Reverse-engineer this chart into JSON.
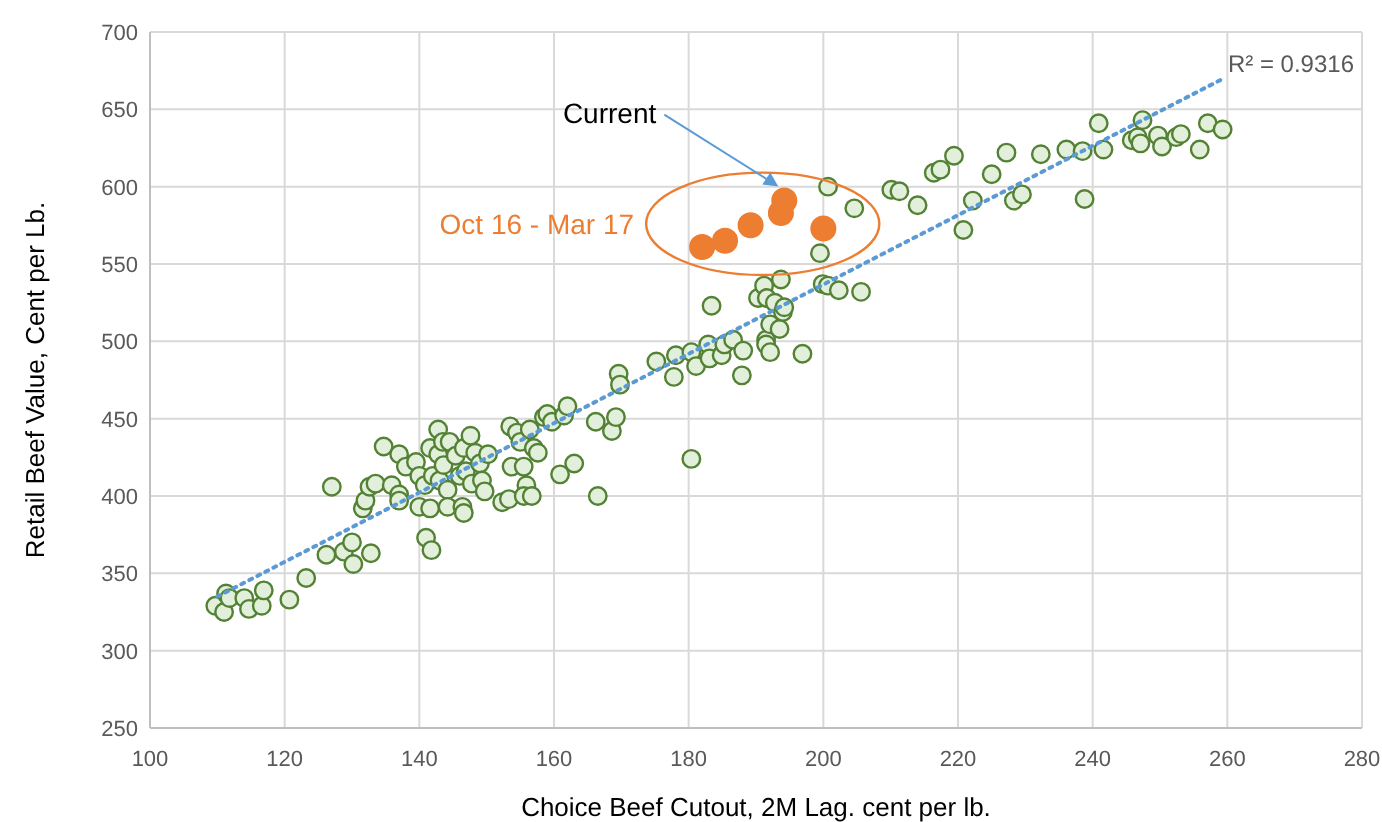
{
  "chart_data": {
    "type": "scatter",
    "xlabel": "Choice Beef Cutout, 2M Lag.  cent per lb.",
    "ylabel": "Retail Beef Value, Cent per Lb.",
    "xlim": [
      100,
      280
    ],
    "xticks": [
      100,
      120,
      140,
      160,
      180,
      200,
      220,
      240,
      260,
      280
    ],
    "ylim": [
      250,
      700
    ],
    "yticks": [
      250,
      300,
      350,
      400,
      450,
      500,
      550,
      600,
      650,
      700
    ],
    "grid": true,
    "annotations": [
      "Current",
      "R² = 0.9316"
    ],
    "series": [
      {
        "color": "#548235",
        "marker": "circle",
        "x": [
          109.7,
          111,
          111.3,
          111.8,
          114,
          114.7,
          116.6,
          116.9,
          120.7,
          123.2,
          126.2,
          127,
          128.8,
          130,
          130.2,
          131.6,
          132,
          132.8,
          132.6,
          133.5,
          134.7,
          135.9,
          137,
          137,
          137,
          138,
          139.5,
          140,
          140,
          140.8,
          141,
          141.6,
          141.6,
          141.8,
          142,
          142.8,
          142.8,
          143,
          143.5,
          143.6,
          144.2,
          144.5,
          144.2,
          145.4,
          146,
          146.4,
          146.6,
          146.9,
          146.6,
          147.6,
          147.8,
          148.3,
          149,
          149.3,
          149.7,
          150.2,
          152.3,
          153.3,
          153.5,
          153.7,
          154.5,
          155,
          155.5,
          155.9,
          155.5,
          156.4,
          156.7,
          157,
          157.6,
          158.5,
          159,
          159.7,
          160.9,
          161.5,
          162,
          163,
          166.2,
          166.5,
          168.6,
          169.2,
          169.6,
          169.8,
          175.2,
          177.8,
          178.1,
          180.4,
          180.4,
          181.1,
          182.9,
          183.1,
          183.4,
          184.9,
          185.3,
          186.6,
          187.9,
          188.1,
          190.3,
          191.2,
          191.6,
          191.5,
          191.5,
          192.1,
          192.1,
          192.8,
          193.5,
          193.7,
          194,
          194.2,
          196.9,
          199.5,
          199.9,
          200.7,
          200.7,
          202.3,
          204.6,
          205.6,
          210.1,
          211.3,
          214,
          216.4,
          217.4,
          219.4,
          220.8,
          222.2,
          225,
          227.2,
          228.3,
          229.5,
          232.3,
          236.1,
          238.5,
          238.8,
          240.9,
          241.6,
          245.8,
          246.7,
          247.1,
          247.4,
          249.7,
          250.3,
          252.4,
          253.1,
          255.9,
          257.1,
          259.3
        ],
        "values": [
          329,
          325,
          337,
          334,
          334,
          327,
          329,
          339,
          333,
          347,
          362,
          406,
          364,
          370,
          356,
          392,
          397,
          363,
          406,
          408,
          432,
          407,
          427,
          401,
          397,
          419,
          422,
          413,
          393,
          407,
          373,
          431,
          392,
          365,
          413,
          443,
          427,
          410,
          435,
          420,
          404,
          435,
          393,
          426,
          413,
          393,
          431,
          416,
          389,
          439,
          408,
          428,
          421,
          410,
          403,
          427,
          396,
          398,
          445,
          419,
          441,
          435,
          419,
          407,
          400,
          443,
          400,
          431,
          428,
          451,
          453,
          448,
          414,
          452,
          458,
          421,
          448,
          400,
          442,
          451,
          479,
          472,
          487,
          477,
          491,
          424,
          493,
          484,
          498,
          489,
          523,
          491,
          498,
          501,
          478,
          494,
          528,
          536,
          528,
          501,
          498,
          511,
          493,
          525,
          508,
          540,
          519,
          522,
          492,
          557,
          537,
          536,
          600,
          533,
          586,
          532,
          598,
          597,
          588,
          609,
          611,
          620,
          572,
          591,
          608,
          622,
          591,
          595,
          621,
          624,
          623,
          592,
          641,
          624,
          630,
          632,
          628,
          643,
          633,
          626,
          632,
          634,
          624,
          641,
          637
        ]
      },
      {
        "name": "Oct 16 - Mar 17",
        "color": "#ed7d31",
        "marker": "circle",
        "x": [
          182,
          185.4,
          189.2,
          193.7,
          194.2,
          200
        ],
        "values": [
          561,
          565,
          575,
          583,
          591,
          573
        ]
      },
      {
        "type": "line",
        "color": "#5b9bd5",
        "line_style": "dotted",
        "marker": "none",
        "x": [
          110,
          259
        ],
        "values": [
          335,
          669
        ]
      }
    ]
  }
}
